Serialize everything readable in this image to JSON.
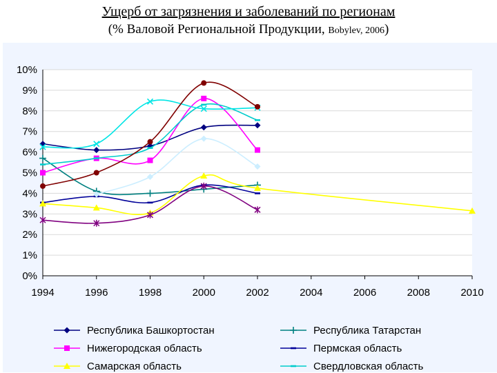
{
  "title": {
    "line1": "Ущерб от загрязнения и заболеваний по регионам",
    "line2": "(% Валовой Региональной Продукции,",
    "citation": "Bobylev, 2006",
    "close": ")"
  },
  "chart_data": {
    "type": "line",
    "title": "Ущерб от загрязнения и заболеваний по регионам",
    "xlabel": "",
    "ylabel": "",
    "xlim": [
      1994,
      2010
    ],
    "ylim": [
      0,
      10
    ],
    "x_ticks": [
      "1994",
      "1996",
      "1998",
      "2000",
      "2002",
      "2004",
      "2006",
      "2008",
      "2010"
    ],
    "y_ticks": [
      "0%",
      "1%",
      "2%",
      "3%",
      "4%",
      "5%",
      "6%",
      "7%",
      "8%",
      "9%",
      "10%"
    ],
    "grid": true,
    "series": [
      {
        "name": "Республика Башкортостан",
        "color": "#000080",
        "marker": "diamond",
        "x": [
          1994,
          1996,
          1998,
          2000,
          2002
        ],
        "values": [
          6.4,
          6.1,
          6.3,
          7.2,
          7.3
        ]
      },
      {
        "name": "Республика Татарстан",
        "color": "#008080",
        "marker": "plus",
        "x": [
          1994,
          1996,
          1998,
          2000,
          2002
        ],
        "values": [
          5.7,
          4.1,
          4.0,
          4.2,
          4.4
        ]
      },
      {
        "name": "Нижегородская область",
        "color": "#ff00ff",
        "marker": "square",
        "x": [
          1994,
          1996,
          1998,
          2000,
          2002
        ],
        "values": [
          5.0,
          5.7,
          5.6,
          8.6,
          6.1
        ]
      },
      {
        "name": "Пермская область",
        "color": "#000099",
        "marker": "dash",
        "x": [
          1994,
          1996,
          1998,
          2000,
          2002
        ],
        "values": [
          3.55,
          3.85,
          3.55,
          4.4,
          4.0
        ]
      },
      {
        "name": "Самарская область",
        "color": "#ffff00",
        "marker": "triangle",
        "x": [
          1994,
          1996,
          1998,
          2000,
          2002,
          2010
        ],
        "values": [
          3.5,
          3.3,
          3.05,
          4.85,
          4.25,
          3.15
        ]
      },
      {
        "name": "Свердловская область",
        "color": "#00cccc",
        "marker": "dash",
        "x": [
          1994,
          1996,
          1998,
          2000,
          2002
        ],
        "values": [
          5.4,
          5.7,
          6.2,
          8.3,
          7.55
        ]
      },
      {
        "name": "",
        "color": "#00e5e5",
        "marker": "x",
        "x": [
          1994,
          1996,
          1998,
          2000,
          2002
        ],
        "values": [
          6.25,
          6.4,
          8.45,
          8.1,
          8.15
        ]
      },
      {
        "name": "",
        "color": "#cceeff",
        "marker": "diamond",
        "x": [
          1996,
          1998,
          2000,
          2002
        ],
        "values": [
          3.95,
          4.8,
          6.65,
          5.3
        ]
      },
      {
        "name": "",
        "color": "#800000",
        "marker": "circle",
        "x": [
          1994,
          1996,
          1998,
          2000,
          2002
        ],
        "values": [
          4.35,
          5.0,
          6.5,
          9.35,
          8.2
        ]
      },
      {
        "name": "",
        "color": "#800080",
        "marker": "star",
        "x": [
          1994,
          1996,
          1998,
          2000,
          2002
        ],
        "values": [
          2.7,
          2.55,
          2.95,
          4.35,
          3.2
        ]
      }
    ],
    "legend": [
      {
        "label": "Республика Башкортостан",
        "series": 0
      },
      {
        "label": "Республика Татарстан",
        "series": 1
      },
      {
        "label": "Нижегородская область",
        "series": 2
      },
      {
        "label": "Пермская область",
        "series": 3
      },
      {
        "label": "Самарская область",
        "series": 4
      },
      {
        "label": "Свердловская область",
        "series": 5
      }
    ],
    "legend_position": "bottom"
  }
}
